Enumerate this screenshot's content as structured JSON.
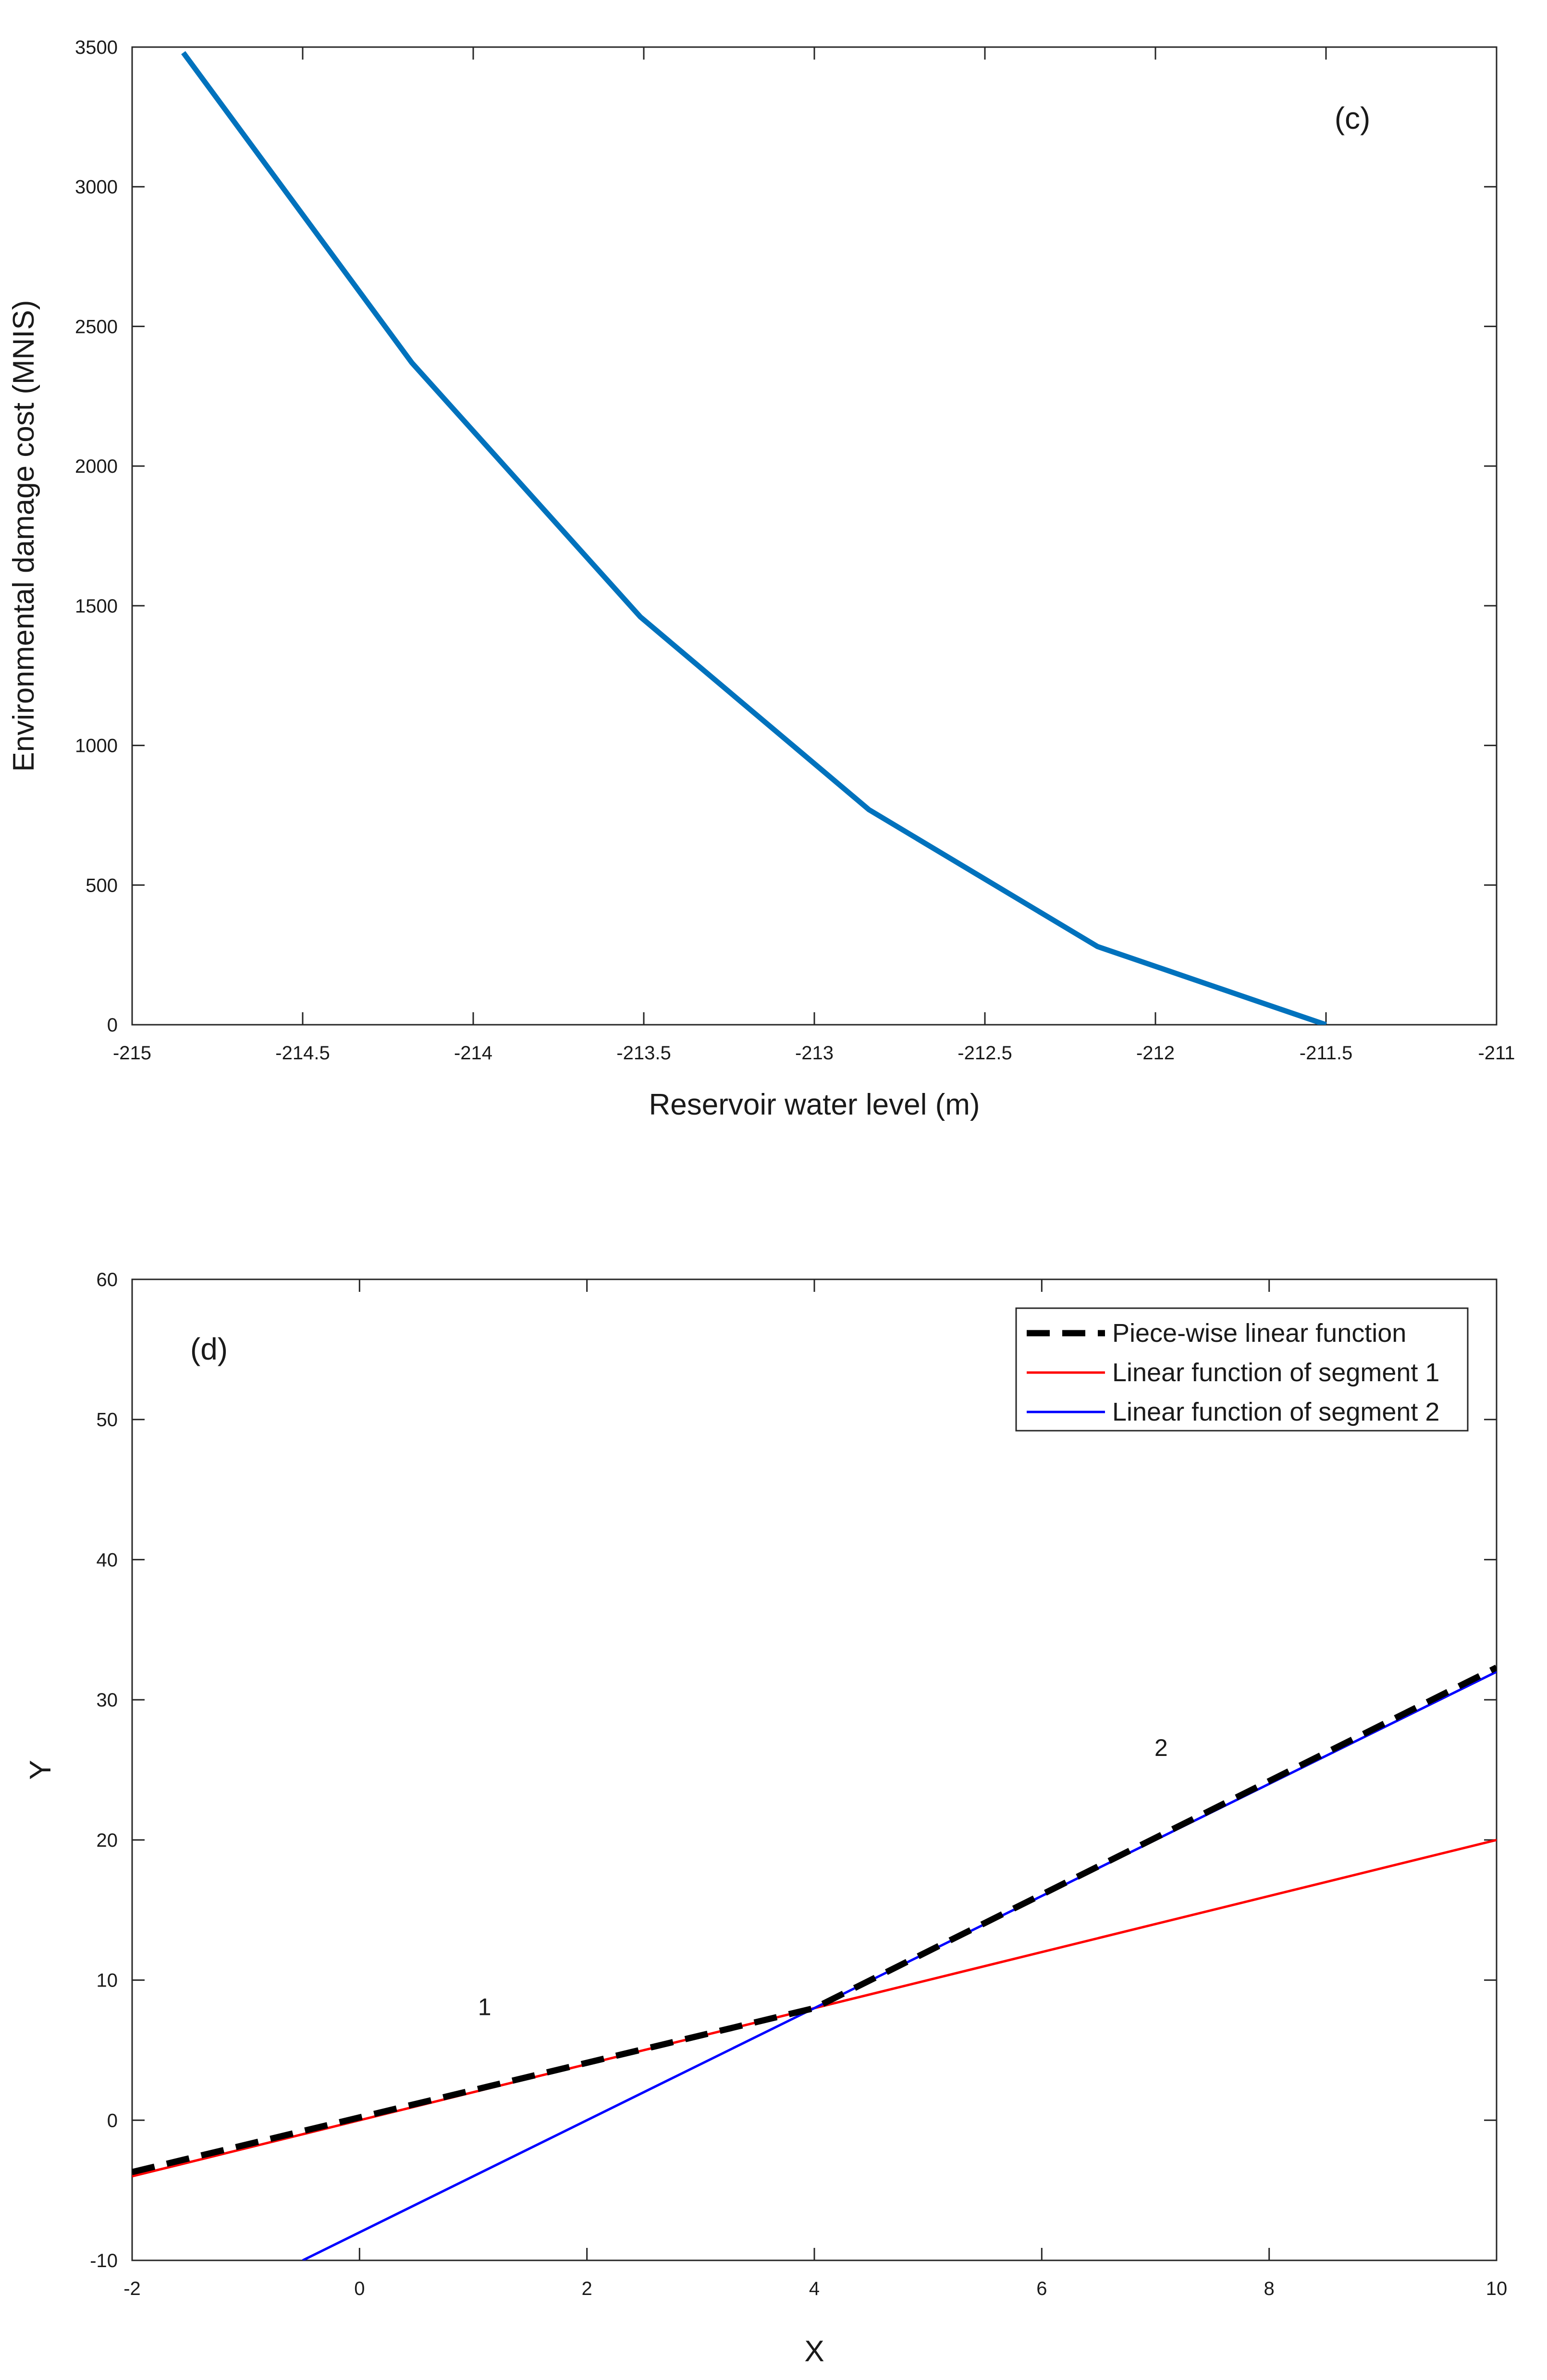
{
  "chart_data": [
    {
      "id": "c",
      "type": "line",
      "panel_label": "(c)",
      "title": "",
      "xlabel": "Reservoir water level (m)",
      "ylabel": "Environmental damage cost (MNIS)",
      "xlim": [
        -215,
        -211
      ],
      "ylim": [
        0,
        3500
      ],
      "xticks": [
        -215,
        -214.5,
        -214,
        -213.5,
        -213,
        -212.5,
        -212,
        -211.5,
        -211
      ],
      "xtick_labels": [
        "-215",
        "-214.5",
        "-214",
        "-213.5",
        "-213",
        "-212.5",
        "-212",
        "-211.5",
        "-211"
      ],
      "yticks": [
        0,
        500,
        1000,
        1500,
        2000,
        2500,
        3000,
        3500
      ],
      "ytick_labels": [
        "0",
        "500",
        "1000",
        "1500",
        "2000",
        "2500",
        "3000",
        "3500"
      ],
      "grid": false,
      "series": [
        {
          "name": "Environmental damage cost",
          "color": "#0072BD",
          "style": "solid",
          "x": [
            -214.85,
            -214.18,
            -213.51,
            -212.84,
            -212.17,
            -211.5
          ],
          "y": [
            3480,
            2370,
            1460,
            770,
            280,
            0
          ]
        }
      ]
    },
    {
      "id": "d",
      "type": "line",
      "panel_label": "(d)",
      "title": "",
      "xlabel": "X",
      "ylabel": "Y",
      "xlim": [
        -2,
        10
      ],
      "ylim": [
        -10,
        60
      ],
      "xticks": [
        -2,
        0,
        2,
        4,
        6,
        8,
        10
      ],
      "xtick_labels": [
        "-2",
        "0",
        "2",
        "4",
        "6",
        "8",
        "10"
      ],
      "yticks": [
        -10,
        0,
        10,
        20,
        30,
        40,
        50,
        60
      ],
      "ytick_labels": [
        "-10",
        "0",
        "10",
        "20",
        "30",
        "40",
        "50",
        "60"
      ],
      "grid": false,
      "legend_position": "top-right",
      "segment_labels": [
        {
          "text": "1",
          "x": 1.1,
          "y": 7.5
        },
        {
          "text": "2",
          "x": 7.05,
          "y": 26
        }
      ],
      "series": [
        {
          "name": "Piece-wise linear function",
          "color": "#000000",
          "style": "dashed",
          "x": [
            -2,
            4,
            10
          ],
          "y": [
            -3.7,
            8,
            32.3
          ]
        },
        {
          "name": "Linear function of segment 1",
          "color": "#ff0000",
          "style": "solid",
          "x": [
            -2,
            10
          ],
          "y": [
            -4,
            20
          ]
        },
        {
          "name": "Linear function of segment 2",
          "color": "#0000ff",
          "style": "solid",
          "x": [
            -0.5,
            10
          ],
          "y": [
            -10,
            32
          ]
        }
      ]
    }
  ]
}
